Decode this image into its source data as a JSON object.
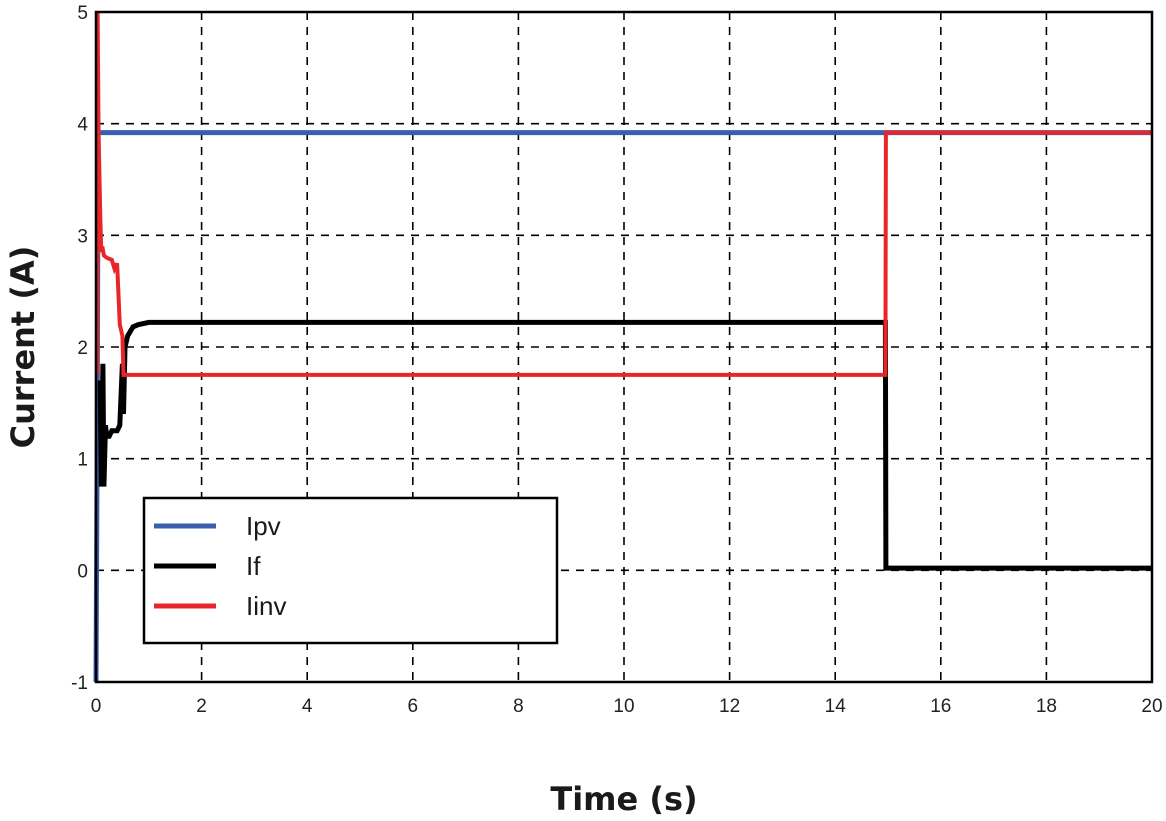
{
  "chart_data": {
    "type": "line",
    "title": "",
    "xlabel": "Time (s)",
    "ylabel": "Current (A)",
    "xlim": [
      0,
      20
    ],
    "ylim": [
      -1,
      5
    ],
    "xticks": [
      0,
      2,
      4,
      6,
      8,
      10,
      12,
      14,
      16,
      18,
      20
    ],
    "yticks": [
      -1,
      0,
      1,
      2,
      3,
      4,
      5
    ],
    "grid": true,
    "legend_position": "bottom-left",
    "series": [
      {
        "name": "Ipv",
        "color": "#3a5fb0",
        "x": [
          0,
          0.02,
          0.04,
          14.95,
          20
        ],
        "y": [
          -1,
          1,
          3.92,
          3.92,
          3.92
        ]
      },
      {
        "name": "If",
        "color": "#000000",
        "x": [
          0.08,
          0.1,
          0.13,
          0.15,
          0.18,
          0.2,
          0.25,
          0.3,
          0.35,
          0.4,
          0.45,
          0.5,
          0.52,
          0.55,
          0.6,
          0.7,
          0.8,
          1.0,
          1.5,
          14.95,
          14.96,
          20
        ],
        "y": [
          1.7,
          0.75,
          1.85,
          0.75,
          1.3,
          1.2,
          1.2,
          1.25,
          1.25,
          1.25,
          1.3,
          1.85,
          1.4,
          2.0,
          2.1,
          2.18,
          2.2,
          2.22,
          2.22,
          2.22,
          0.02,
          0.02
        ]
      },
      {
        "name": "Iinv",
        "color": "#e8262a",
        "x": [
          0.02,
          0.03,
          0.05,
          0.08,
          0.1,
          0.12,
          0.15,
          0.2,
          0.3,
          0.35,
          0.4,
          0.45,
          0.5,
          0.52,
          0.55,
          14.95,
          14.96,
          20
        ],
        "y": [
          1.75,
          5.0,
          3.9,
          3.2,
          2.85,
          2.9,
          2.82,
          2.8,
          2.78,
          2.7,
          2.75,
          2.2,
          2.1,
          1.75,
          1.75,
          1.75,
          3.92,
          3.92
        ]
      }
    ]
  }
}
